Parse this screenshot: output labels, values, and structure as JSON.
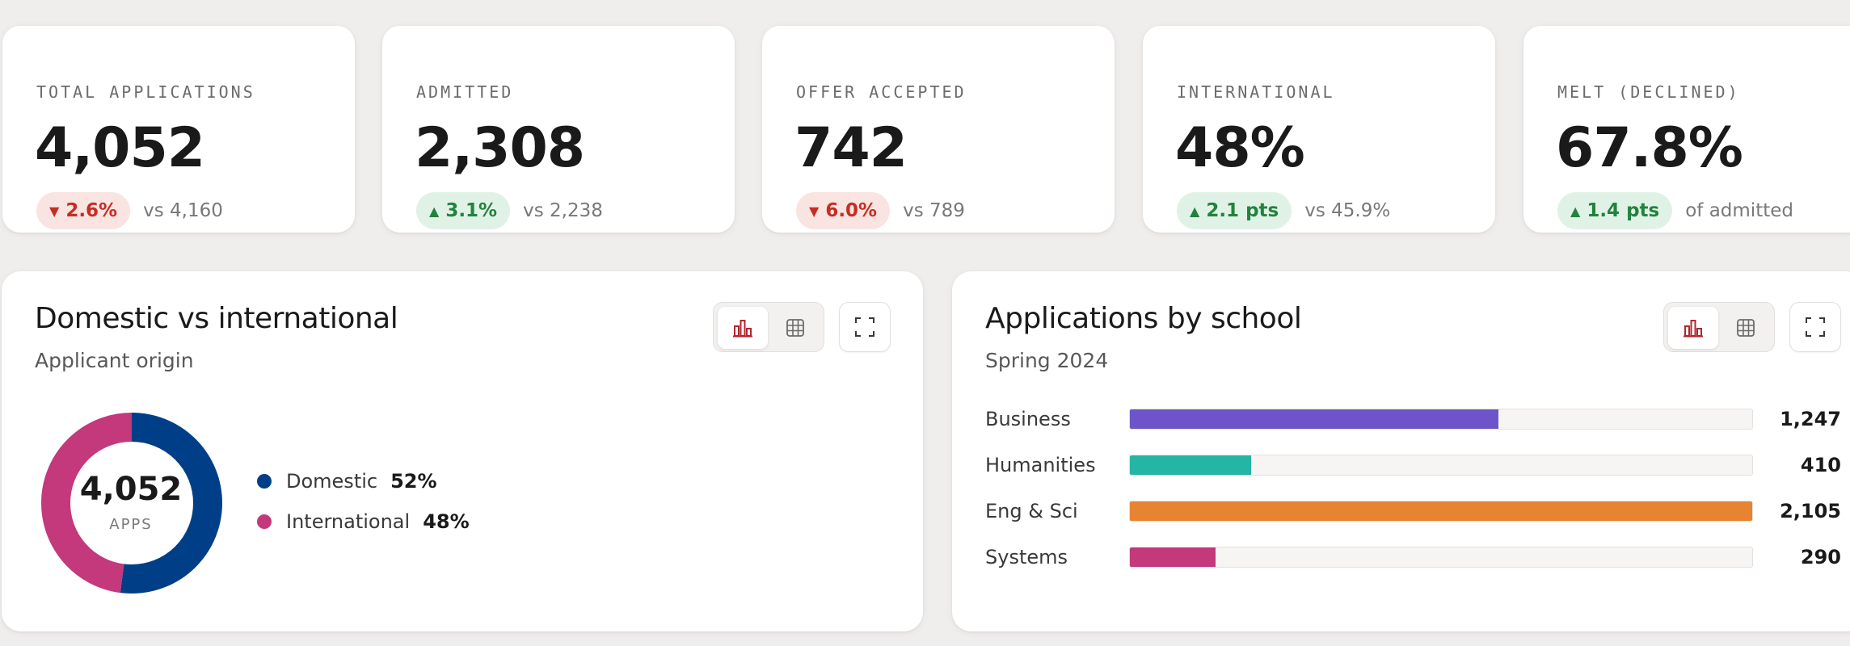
{
  "kpis": [
    {
      "label": "TOTAL APPLICATIONS",
      "value": "4,052",
      "delta": "2.6%",
      "direction": "down",
      "compare": "vs 4,160"
    },
    {
      "label": "ADMITTED",
      "value": "2,308",
      "delta": "3.1%",
      "direction": "up",
      "compare": "vs 2,238"
    },
    {
      "label": "OFFER ACCEPTED",
      "value": "742",
      "delta": "6.0%",
      "direction": "down",
      "compare": "vs 789"
    },
    {
      "label": "INTERNATIONAL",
      "value": "48%",
      "delta": "2.1 pts",
      "direction": "up",
      "compare": "vs 45.9%"
    },
    {
      "label": "MELT (DECLINED)",
      "value": "67.8%",
      "delta": "1.4 pts",
      "direction": "up",
      "compare": "of admitted"
    }
  ],
  "arrows": {
    "up": "▲",
    "down": "▼"
  },
  "origin_panel": {
    "title": "Domestic vs international",
    "subtitle": "Applicant origin",
    "center_value": "4,052",
    "center_label": "APPS",
    "segments": [
      {
        "name": "Domestic",
        "value_label": "52%",
        "fraction": 0.52,
        "color": "#003f87"
      },
      {
        "name": "International",
        "value_label": "48%",
        "fraction": 0.48,
        "color": "#c4387c"
      }
    ]
  },
  "school_panel": {
    "title": "Applications by school",
    "subtitle": "Spring 2024",
    "max": 2105,
    "bars": [
      {
        "label": "Business",
        "value": 1247,
        "value_label": "1,247",
        "color": "#6d55c9"
      },
      {
        "label": "Humanities",
        "value": 410,
        "value_label": "410",
        "color": "#25b5a5"
      },
      {
        "label": "Eng & Sci",
        "value": 2105,
        "value_label": "2,105",
        "color": "#e88431"
      },
      {
        "label": "Systems",
        "value": 290,
        "value_label": "290",
        "color": "#c4387c"
      }
    ]
  },
  "toolbar": {
    "chart_icon": "bar-chart-icon",
    "table_icon": "table-grid-icon",
    "expand_icon": "expand-icon",
    "active_color": "#b3252c"
  }
}
